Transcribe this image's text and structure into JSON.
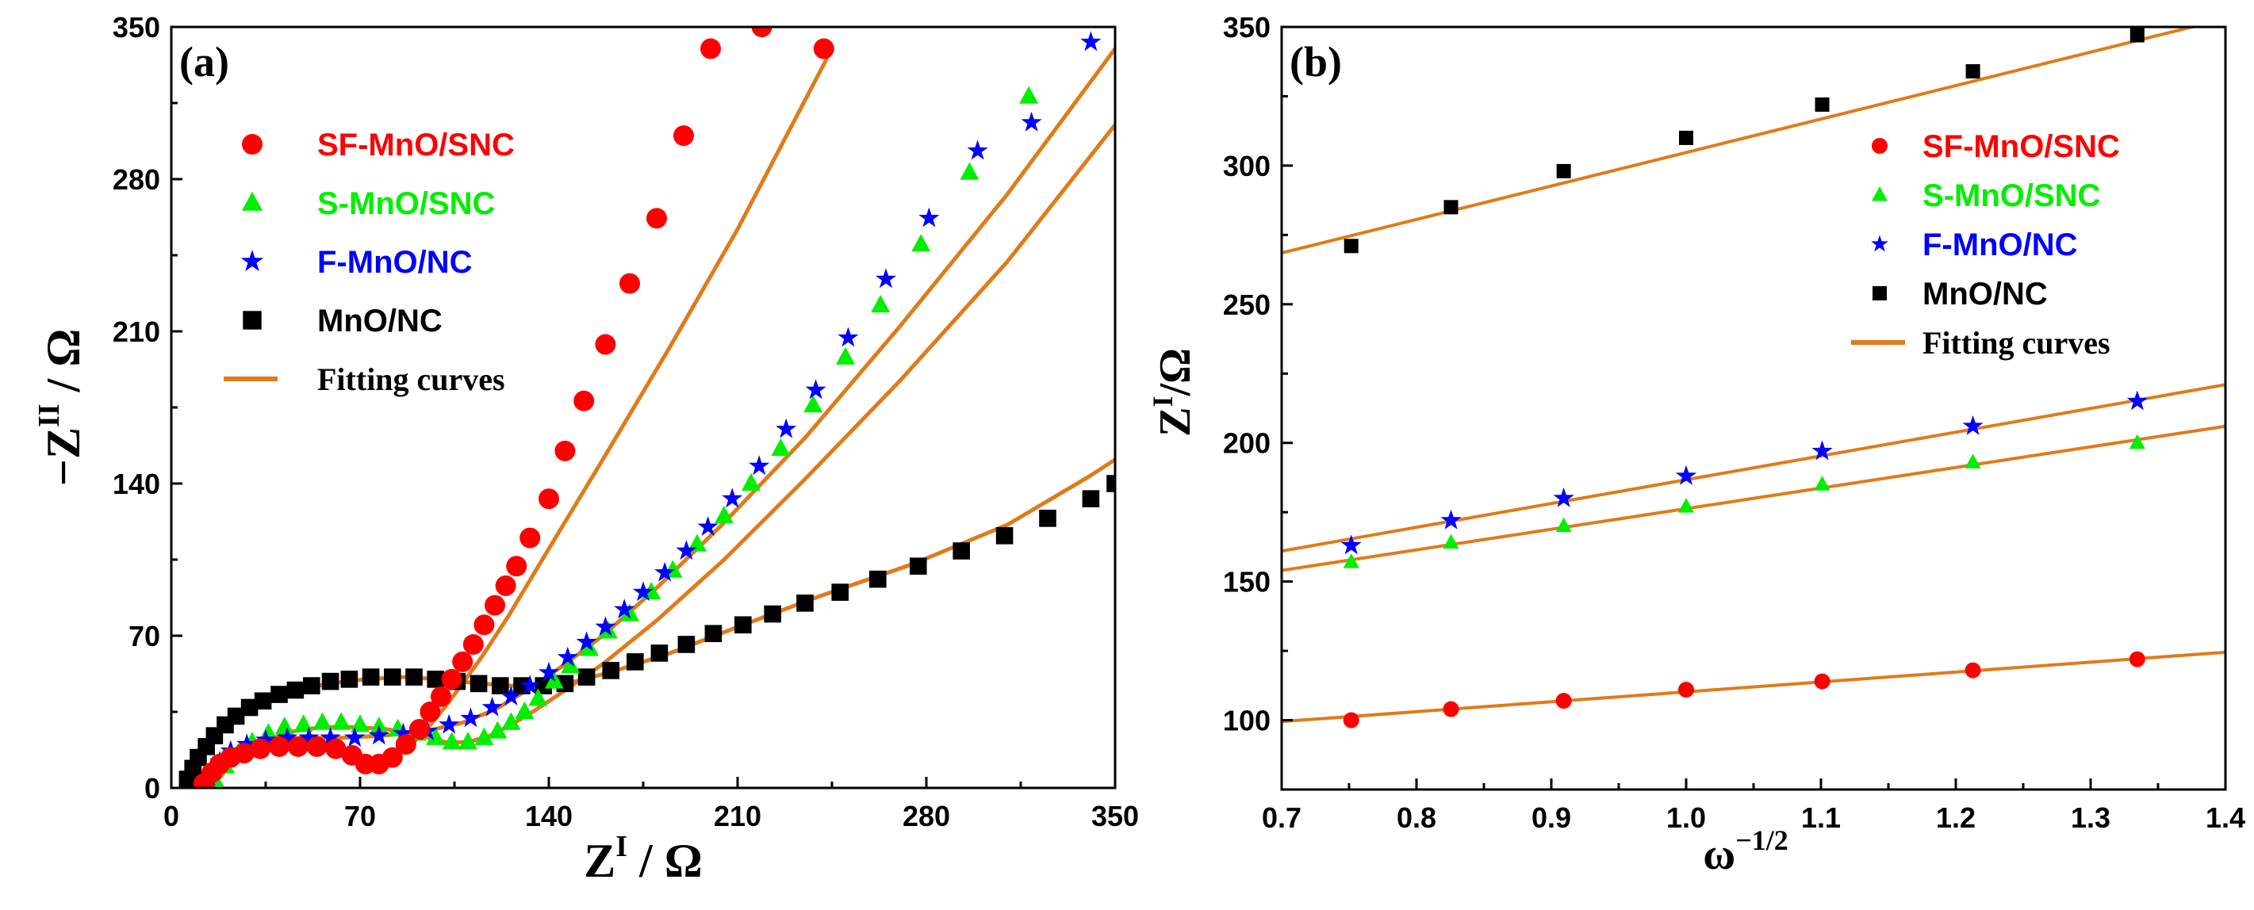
{
  "colors": {
    "SF-MnO/SNC": "#ff0000",
    "S-MnO/SNC": "#00ee00",
    "F-MnO/NC": "#0000ff",
    "MnO/NC": "#000000",
    "Fitting curves": "#e07b1a"
  },
  "chart_data": [
    {
      "type": "scatter",
      "panel_label": "(a)",
      "xlabel_main": "Z",
      "xlabel_sup": "I",
      "xlabel_unit": " / Ω",
      "ylabel_main": "−Z",
      "ylabel_sup": "II",
      "ylabel_unit": " / Ω",
      "xlim": [
        0,
        350
      ],
      "ylim": [
        0,
        350
      ],
      "xticks": [
        0,
        70,
        140,
        210,
        280,
        350
      ],
      "yticks": [
        0,
        70,
        140,
        210,
        280,
        350
      ],
      "legend_position": "top-left",
      "legend": [
        "SF-MnO/SNC",
        "S-MnO/SNC",
        "F-MnO/NC",
        "MnO/NC",
        "Fitting curves"
      ],
      "series": [
        {
          "name": "SF-MnO/SNC",
          "marker": "circle",
          "x": [
            12,
            15,
            18,
            22,
            27,
            33,
            40,
            47,
            54,
            61,
            67,
            72,
            77,
            82,
            87,
            92,
            96,
            100,
            104,
            108,
            112,
            116,
            120,
            124,
            128,
            133,
            140,
            146,
            153,
            161,
            170,
            180,
            190,
            200,
            219,
            242
          ],
          "y": [
            2,
            7,
            11,
            14,
            16,
            18,
            19,
            19,
            19,
            18,
            15,
            11,
            11,
            14,
            20,
            27,
            35,
            42,
            50,
            58,
            66,
            75,
            84,
            93,
            102,
            115,
            133,
            155,
            178,
            204,
            232,
            262,
            300,
            340,
            350,
            340
          ]
        },
        {
          "name": "S-MnO/SNC",
          "marker": "triangle",
          "x": [
            16,
            20,
            25,
            30,
            36,
            42,
            49,
            56,
            63,
            70,
            77,
            84,
            91,
            98,
            104,
            110,
            116,
            121,
            126,
            131,
            136,
            142,
            148,
            155,
            162,
            170,
            178,
            186,
            195,
            205,
            215,
            226,
            238,
            250,
            263,
            278,
            296,
            318
          ],
          "y": [
            4,
            10,
            16,
            21,
            25,
            28,
            29,
            30,
            30,
            29,
            28,
            27,
            25,
            23,
            21,
            21,
            23,
            26,
            30,
            35,
            41,
            49,
            56,
            64,
            72,
            80,
            90,
            100,
            112,
            125,
            140,
            156,
            176,
            198,
            222,
            250,
            283,
            318
          ]
        },
        {
          "name": "F-MnO/NC",
          "marker": "star",
          "x": [
            14,
            18,
            22,
            28,
            35,
            43,
            51,
            59,
            68,
            77,
            86,
            95,
            103,
            111,
            119,
            126,
            133,
            140,
            147,
            154,
            161,
            168,
            175,
            183,
            191,
            199,
            208,
            218,
            228,
            239,
            251,
            265,
            281,
            299,
            319,
            341
          ],
          "y": [
            5,
            12,
            17,
            20,
            22,
            23,
            23,
            23,
            23,
            24,
            25,
            26,
            29,
            32,
            37,
            42,
            47,
            53,
            60,
            67,
            74,
            82,
            90,
            99,
            109,
            120,
            133,
            148,
            165,
            183,
            207,
            234,
            262,
            293,
            306,
            343
          ]
        },
        {
          "name": "MnO/NC",
          "marker": "square",
          "x": [
            6,
            8,
            10,
            13,
            16,
            20,
            24,
            29,
            34,
            40,
            46,
            52,
            59,
            66,
            74,
            82,
            90,
            98,
            106,
            114,
            122,
            130,
            138,
            146,
            154,
            163,
            172,
            181,
            191,
            201,
            212,
            223,
            235,
            248,
            262,
            277,
            293,
            309,
            325,
            341,
            350
          ],
          "y": [
            4,
            9,
            14,
            19,
            24,
            29,
            33,
            37,
            40,
            43,
            45,
            47,
            49,
            50,
            51,
            51,
            51,
            50,
            49,
            48,
            47,
            47,
            47,
            48,
            51,
            54,
            58,
            62,
            66,
            71,
            75,
            80,
            85,
            90,
            96,
            102,
            109,
            116,
            124,
            133,
            140
          ]
        },
        {
          "name": "Fitting curves",
          "marker": "line",
          "curves": [
            {
              "of": "SF-MnO/SNC",
              "x": [
                10,
                14,
                20,
                28,
                38,
                48,
                58,
                66,
                72,
                78,
                84,
                90,
                96,
                102,
                108,
                115,
                125,
                140,
                160,
                185,
                210,
                245
              ],
              "y": [
                0,
                6,
                12,
                16,
                18,
                19,
                18,
                15,
                12,
                12,
                15,
                21,
                29,
                38,
                48,
                60,
                79,
                110,
                151,
                203,
                257,
                340
              ]
            },
            {
              "of": "S-MnO/SNC",
              "x": [
                15,
                20,
                27,
                35,
                45,
                56,
                68,
                80,
                92,
                102,
                110,
                118,
                126,
                134,
                145,
                160,
                180,
                205,
                235,
                270,
                310,
                350
              ],
              "y": [
                0,
                8,
                16,
                22,
                26,
                28,
                28,
                27,
                24,
                21,
                21,
                24,
                29,
                35,
                44,
                57,
                77,
                105,
                142,
                187,
                242,
                305
              ]
            },
            {
              "of": "F-MnO/NC",
              "x": [
                13,
                18,
                25,
                35,
                48,
                62,
                78,
                94,
                108,
                120,
                132,
                145,
                160,
                180,
                205,
                235,
                270,
                310,
                350
              ],
              "y": [
                0,
                10,
                17,
                21,
                23,
                23,
                24,
                26,
                30,
                36,
                45,
                56,
                70,
                92,
                122,
                161,
                212,
                273,
                340
              ]
            },
            {
              "of": "MnO/NC",
              "x": [
                5,
                9,
                15,
                23,
                33,
                45,
                58,
                72,
                86,
                100,
                114,
                126,
                138,
                150,
                165,
                185,
                210,
                240,
                275,
                310,
                340,
                350
              ],
              "y": [
                0,
                12,
                23,
                32,
                39,
                44,
                48,
                50,
                51,
                50,
                48,
                47,
                47,
                49,
                54,
                62,
                74,
                88,
                103,
                121,
                143,
                151
              ]
            }
          ]
        }
      ]
    },
    {
      "type": "scatter",
      "panel_label": "(b)",
      "xlabel_main": "ω",
      "xlabel_sup": "−1/2",
      "ylabel_main": "Z",
      "ylabel_sup": "I",
      "ylabel_unit": "/Ω",
      "xlim": [
        0.7,
        1.4
      ],
      "ylim": [
        75,
        350
      ],
      "xticks": [
        0.7,
        0.8,
        0.9,
        1.0,
        1.1,
        1.2,
        1.3,
        1.4
      ],
      "xtick_labels": [
        "0.7",
        "0.8",
        "0.9",
        "1.0",
        "1.1",
        "1.2",
        "1.3",
        "1.4"
      ],
      "yticks": [
        100,
        150,
        200,
        250,
        300,
        350
      ],
      "legend_position": "top-right",
      "legend": [
        "SF-MnO/SNC",
        "S-MnO/SNC",
        "F-MnO/NC",
        "MnO/NC",
        "Fitting curves"
      ],
      "x": [
        0.7516,
        0.8256,
        0.9092,
        1.0,
        1.1009,
        1.2127,
        1.3346
      ],
      "series": [
        {
          "name": "SF-MnO/SNC",
          "marker": "circle",
          "values": [
            100,
            104,
            107,
            111,
            114,
            118,
            122
          ],
          "fit": [
            [
              0.7,
              99.5
            ],
            [
              1.4,
              124.5
            ]
          ]
        },
        {
          "name": "S-MnO/SNC",
          "marker": "triangle",
          "values": [
            157,
            164,
            170,
            177,
            185,
            193,
            200
          ],
          "fit": [
            [
              0.7,
              154
            ],
            [
              1.4,
              206
            ]
          ]
        },
        {
          "name": "F-MnO/NC",
          "marker": "star",
          "values": [
            163,
            172,
            180,
            188,
            197,
            206,
            215
          ],
          "fit": [
            [
              0.7,
              161
            ],
            [
              1.4,
              221
            ]
          ]
        },
        {
          "name": "MnO/NC",
          "marker": "square",
          "values": [
            271,
            285,
            298,
            310,
            322,
            334,
            347
          ],
          "fit": [
            [
              0.7,
              268.5
            ],
            [
              1.4,
              353
            ]
          ]
        }
      ]
    }
  ]
}
